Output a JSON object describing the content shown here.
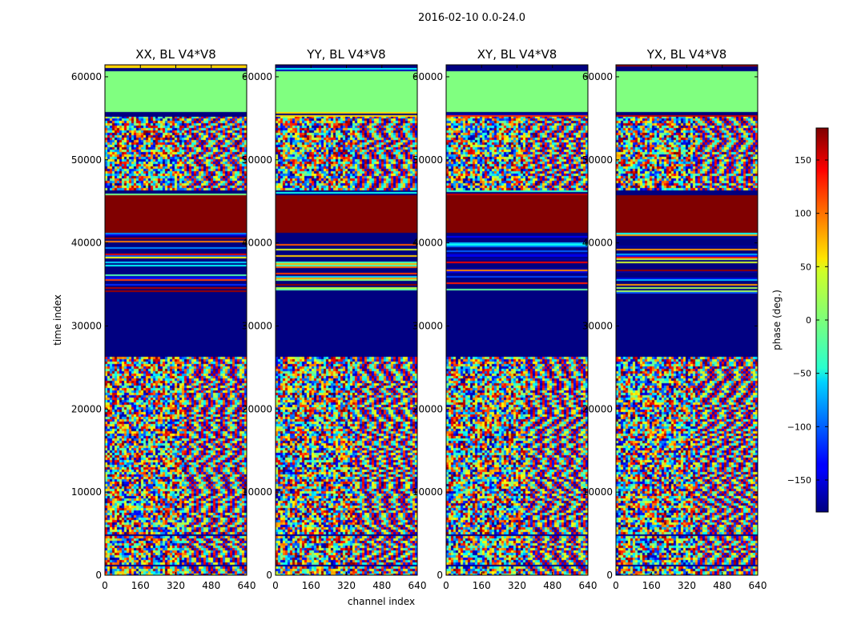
{
  "chart_data": {
    "type": "heatmap",
    "suptitle": "2016-02-10 0.0-24.0",
    "xlabel": "channel index",
    "ylabel": "time index",
    "xlim": [
      0,
      640
    ],
    "ylim": [
      0,
      61440
    ],
    "x_ticks": [
      "0",
      "160",
      "320",
      "480",
      "640"
    ],
    "x_tick_values": [
      0,
      160,
      320,
      480,
      640
    ],
    "y_ticks": [
      "0",
      "10000",
      "20000",
      "30000",
      "40000",
      "50000",
      "60000"
    ],
    "y_tick_values": [
      0,
      10000,
      20000,
      30000,
      40000,
      50000,
      60000
    ],
    "colormap": "jet",
    "colorbar": {
      "label": "phase (deg.)",
      "range": [
        -180,
        180
      ],
      "ticks": [
        "−150",
        "−100",
        "−50",
        "0",
        "50",
        "100",
        "150"
      ],
      "tick_values": [
        -150,
        -100,
        -50,
        0,
        50,
        100,
        150
      ]
    },
    "panels": [
      {
        "title": "XX, BL V4*V8",
        "pol": "XX"
      },
      {
        "title": "YY, BL V4*V8",
        "pol": "YY"
      },
      {
        "title": "XY, BL V4*V8",
        "pol": "XY"
      },
      {
        "title": "YX, BL V4*V8",
        "pol": "YX"
      }
    ],
    "bands": [
      {
        "t0": 0,
        "t1": 1100,
        "kind": "noise"
      },
      {
        "t0": 1100,
        "t1": 1300,
        "kind": "line",
        "phase": -175
      },
      {
        "t0": 1300,
        "t1": 4700,
        "kind": "noise"
      },
      {
        "t0": 4700,
        "t1": 4900,
        "kind": "line",
        "phase": -175
      },
      {
        "t0": 4900,
        "t1": 10400,
        "kind": "noise"
      },
      {
        "t0": 10400,
        "t1": 10600,
        "kind": "line",
        "phase": -175
      },
      {
        "t0": 10600,
        "t1": 26300,
        "kind": "noise"
      },
      {
        "t0": 26300,
        "t1": 34000,
        "kind": "constant",
        "phase": -180
      },
      {
        "t0": 34000,
        "t1": 41200,
        "kind": "striped"
      },
      {
        "t0": 41200,
        "t1": 45800,
        "kind": "constant",
        "phase": 180
      },
      {
        "t0": 45800,
        "t1": 46300,
        "kind": "striped"
      },
      {
        "t0": 46300,
        "t1": 55300,
        "kind": "noise"
      },
      {
        "t0": 55300,
        "t1": 55800,
        "kind": "striped"
      },
      {
        "t0": 55800,
        "t1": 60700,
        "kind": "constant",
        "phase": 0
      },
      {
        "t0": 60700,
        "t1": 61440,
        "kind": "striped"
      }
    ]
  }
}
